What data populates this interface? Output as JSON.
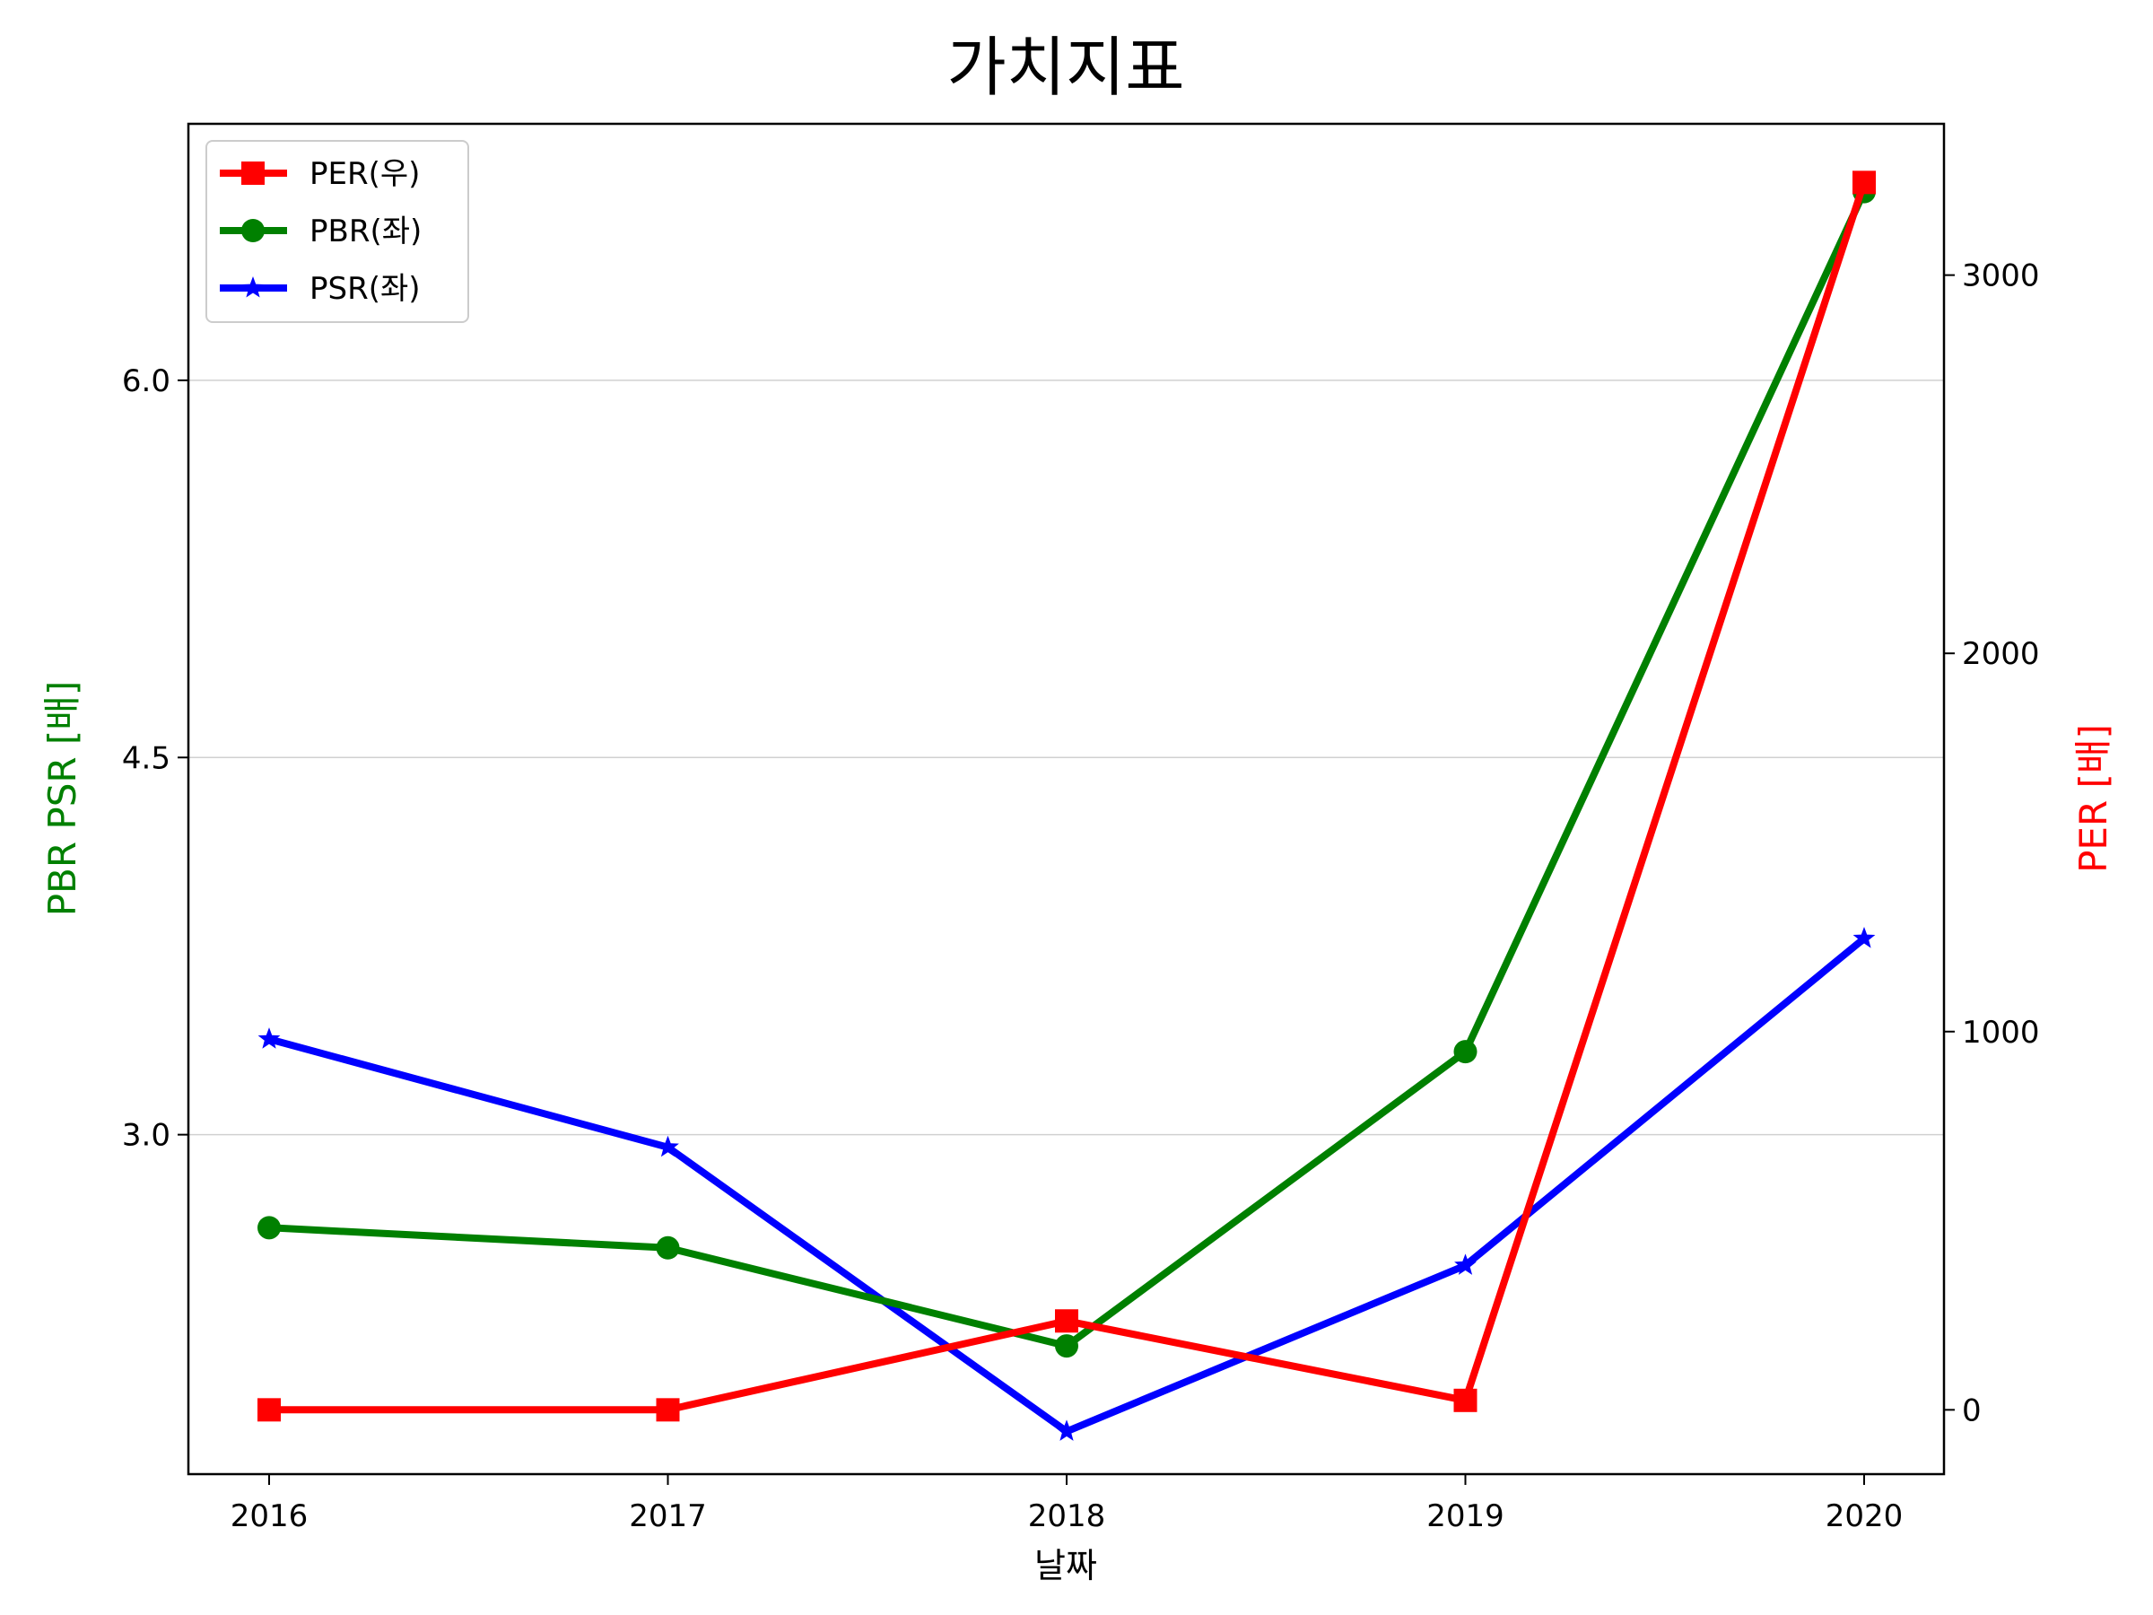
{
  "chart_data": {
    "type": "line",
    "title": "가치지표",
    "xlabel": "날짜",
    "ylabel_left": "PBR PSR [배]",
    "ylabel_right": "PER [배]",
    "categories": [
      "2016",
      "2017",
      "2018",
      "2019",
      "2020"
    ],
    "left_axis": {
      "ylim": [
        1.65,
        7.02
      ],
      "ticks": [
        3.0,
        4.5,
        6.0
      ],
      "tick_labels": [
        "3.0",
        "4.5",
        "6.0"
      ]
    },
    "right_axis": {
      "ylim": [
        -170,
        3400
      ],
      "ticks": [
        0,
        1000,
        2000,
        3000
      ],
      "tick_labels": [
        "0",
        "1000",
        "2000",
        "3000"
      ]
    },
    "grid": "horizontal (left axis)",
    "legend_position": "upper-left",
    "series": [
      {
        "name": "PER(우)",
        "axis": "right",
        "color": "#ff0000",
        "marker": "square",
        "values": [
          0,
          0,
          235,
          25,
          3245
        ]
      },
      {
        "name": "PBR(좌)",
        "axis": "left",
        "color": "#008000",
        "marker": "circle",
        "values": [
          2.63,
          2.55,
          2.16,
          3.33,
          6.75
        ]
      },
      {
        "name": "PSR(좌)",
        "axis": "left",
        "color": "#0000ff",
        "marker": "star",
        "values": [
          3.38,
          2.95,
          1.82,
          2.48,
          3.78
        ]
      }
    ]
  }
}
